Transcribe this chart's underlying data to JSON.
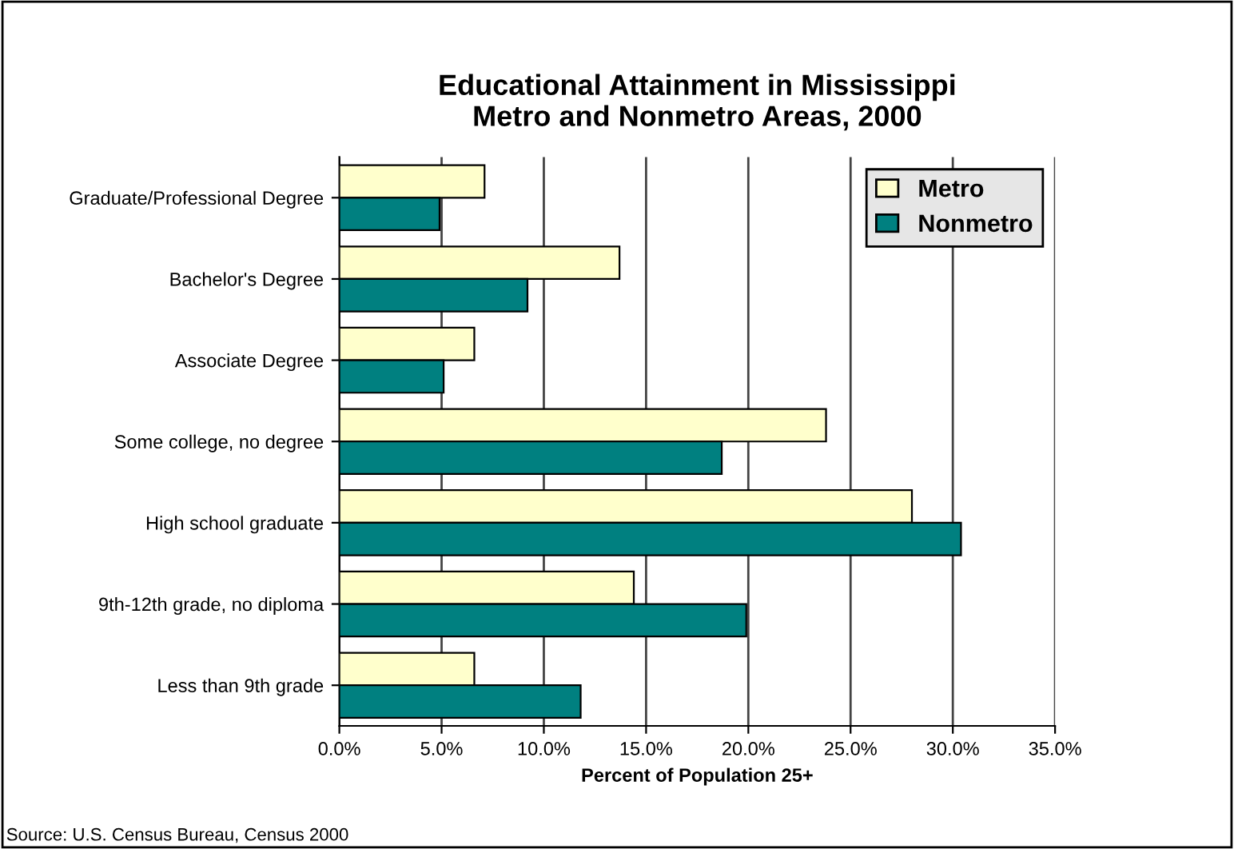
{
  "chart_data": {
    "type": "bar",
    "orientation": "horizontal",
    "title": "Educational Attainment in Mississippi\nMetro and Nonmetro Areas, 2000",
    "xlabel": "Percent of Population 25+",
    "categories": [
      "Graduate/Professional Degree",
      "Bachelor's Degree",
      "Associate Degree",
      "Some college, no degree",
      "High school graduate",
      "9th-12th grade, no diploma",
      "Less than 9th grade"
    ],
    "series": [
      {
        "name": "Metro",
        "color": "#ffffcc",
        "values": [
          7.1,
          13.7,
          6.6,
          23.8,
          28.0,
          14.4,
          6.6
        ]
      },
      {
        "name": "Nonmetro",
        "color": "#008080",
        "values": [
          4.9,
          9.2,
          5.1,
          18.7,
          30.4,
          19.9,
          11.8
        ]
      }
    ],
    "xlim": [
      0,
      35
    ],
    "xticks": [
      {
        "value": 0,
        "label": "0.0%"
      },
      {
        "value": 5,
        "label": "5.0%"
      },
      {
        "value": 10,
        "label": "10.0%"
      },
      {
        "value": 15,
        "label": "15.0%"
      },
      {
        "value": 20,
        "label": "20.0%"
      },
      {
        "value": 25,
        "label": "25.0%"
      },
      {
        "value": 30,
        "label": "30.0%"
      },
      {
        "value": 35,
        "label": "35.0%"
      }
    ],
    "grid": "x",
    "legend": "top right",
    "annotations": [
      "Source: U.S. Census Bureau, Census 2000"
    ]
  }
}
